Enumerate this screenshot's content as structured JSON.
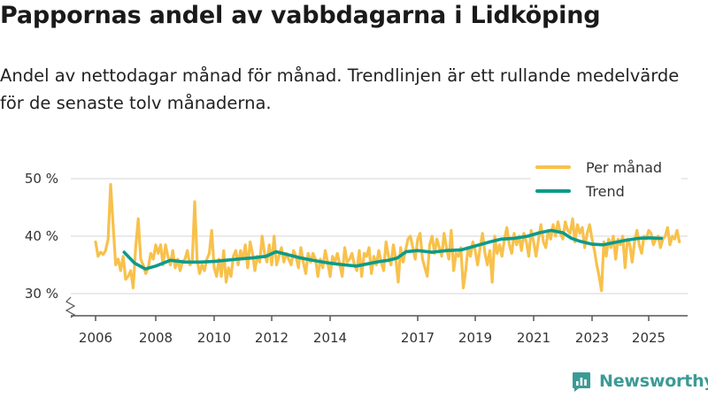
{
  "title": "Pappornas andel av vabbdagarna i Lidköping",
  "subtitle": "Andel av nettodagar månad för månad. Trendlinjen är ett rullande medelvärde för de senaste tolv månaderna.",
  "brand": "Newsworthy",
  "colors": {
    "per_month": "#f8c14c",
    "trend": "#0a9b8b",
    "grid": "#dddddd",
    "axis": "#555555",
    "brand": "#3c9a96"
  },
  "chart_data": {
    "type": "line",
    "title": "Pappornas andel av vabbdagarna i Lidköping",
    "xlabel": "",
    "ylabel": "",
    "ylim": [
      30,
      50
    ],
    "xlim": [
      2006.0,
      2025.75
    ],
    "x_ticks": [
      2006,
      2008,
      2010,
      2012,
      2014,
      2017,
      2019,
      2021,
      2023,
      2025
    ],
    "x_tick_labels": [
      "2006",
      "2008",
      "2010",
      "2012",
      "2014",
      "2017",
      "2019",
      "2021",
      "2023",
      "2025"
    ],
    "y_ticks": [
      30,
      40,
      50
    ],
    "y_tick_labels": [
      "30 %",
      "40 %",
      "50 %"
    ],
    "y_axis_break": true,
    "grid": true,
    "legend_position": "top-right",
    "series": [
      {
        "name": "Per månad",
        "x_start": 2006.0,
        "step": 0.0833333,
        "values": [
          39.0,
          36.5,
          37.2,
          36.8,
          37.5,
          39.5,
          49.0,
          42.0,
          35.0,
          36.0,
          34.0,
          36.5,
          32.5,
          33.0,
          34.0,
          31.0,
          38.0,
          43.0,
          36.0,
          35.0,
          33.5,
          34.5,
          37.0,
          36.0,
          38.5,
          37.0,
          38.5,
          35.0,
          38.5,
          36.5,
          35.0,
          37.5,
          34.5,
          36.0,
          34.0,
          35.5,
          36.0,
          37.5,
          35.0,
          35.5,
          46.0,
          36.0,
          33.5,
          35.0,
          34.0,
          36.0,
          37.0,
          41.0,
          34.5,
          33.0,
          36.0,
          33.0,
          37.5,
          32.0,
          34.5,
          33.0,
          36.5,
          37.5,
          35.0,
          37.5,
          36.0,
          38.5,
          34.5,
          39.0,
          37.0,
          34.0,
          36.5,
          35.5,
          40.0,
          37.0,
          35.5,
          38.5,
          35.0,
          40.0,
          35.0,
          36.5,
          38.0,
          35.5,
          37.0,
          36.0,
          35.0,
          37.5,
          36.5,
          34.5,
          38.0,
          35.5,
          33.5,
          37.0,
          35.5,
          37.0,
          36.0,
          33.0,
          36.0,
          34.5,
          37.5,
          35.5,
          33.0,
          36.5,
          35.5,
          37.0,
          35.0,
          33.0,
          38.0,
          35.5,
          36.0,
          37.0,
          35.0,
          34.0,
          37.5,
          33.0,
          37.0,
          36.5,
          38.0,
          33.5,
          36.5,
          35.0,
          37.5,
          35.5,
          34.0,
          39.0,
          36.5,
          35.0,
          38.5,
          36.0,
          32.0,
          38.0,
          35.5,
          37.5,
          39.5,
          40.0,
          38.0,
          36.0,
          39.5,
          40.5,
          36.0,
          34.5,
          33.0,
          38.5,
          40.0,
          37.0,
          39.5,
          38.0,
          36.5,
          40.5,
          38.0,
          36.0,
          41.0,
          34.0,
          37.0,
          36.5,
          38.0,
          31.0,
          34.0,
          38.0,
          36.5,
          39.0,
          37.5,
          35.0,
          38.0,
          40.5,
          37.0,
          35.0,
          37.5,
          32.0,
          40.0,
          37.0,
          38.5,
          36.5,
          39.5,
          41.5,
          38.5,
          37.0,
          40.5,
          38.5,
          40.0,
          37.5,
          40.5,
          39.0,
          36.5,
          41.0,
          39.0,
          36.5,
          39.5,
          42.0,
          39.0,
          38.0,
          41.0,
          39.5,
          42.0,
          40.0,
          42.5,
          40.5,
          39.5,
          42.5,
          41.0,
          40.5,
          43.0,
          39.0,
          42.0,
          40.5,
          41.5,
          38.0,
          40.5,
          42.0,
          39.5,
          37.5,
          35.0,
          33.0,
          30.5,
          39.0,
          36.5,
          39.5,
          38.0,
          40.0,
          36.0,
          39.5,
          38.5,
          40.0,
          34.5,
          39.5,
          38.5,
          35.5,
          39.0,
          41.0,
          38.5,
          37.0,
          40.0,
          39.5,
          41.0,
          40.5,
          38.5,
          39.5,
          40.0,
          38.0,
          39.5,
          40.0,
          41.5,
          38.5,
          40.0,
          39.5,
          41.0,
          39.0
        ]
      },
      {
        "name": "Trend",
        "x": [
          2006.95,
          2007.3,
          2007.65,
          2008.0,
          2008.5,
          2009.0,
          2009.5,
          2010.0,
          2010.4,
          2010.8,
          2011.3,
          2011.8,
          2012.15,
          2012.6,
          2013.0,
          2013.5,
          2014.0,
          2014.5,
          2014.9,
          2015.3,
          2015.7,
          2016.0,
          2016.3,
          2016.6,
          2017.0,
          2017.5,
          2018.0,
          2018.5,
          2019.0,
          2019.5,
          2019.9,
          2020.3,
          2020.8,
          2021.2,
          2021.6,
          2022.0,
          2022.3,
          2022.6,
          2023.0,
          2023.4,
          2023.8,
          2024.2,
          2024.6,
          2025.0,
          2025.45
        ],
        "values": [
          37.2,
          35.3,
          34.3,
          34.8,
          35.8,
          35.5,
          35.5,
          35.6,
          35.8,
          36.0,
          36.2,
          36.5,
          37.3,
          36.7,
          36.2,
          35.7,
          35.3,
          35.0,
          34.8,
          35.2,
          35.6,
          35.8,
          36.2,
          37.3,
          37.5,
          37.2,
          37.5,
          37.6,
          38.3,
          39.0,
          39.5,
          39.6,
          40.0,
          40.6,
          41.0,
          40.6,
          39.6,
          39.1,
          38.6,
          38.5,
          38.9,
          39.3,
          39.6,
          39.7,
          39.6
        ]
      }
    ]
  }
}
